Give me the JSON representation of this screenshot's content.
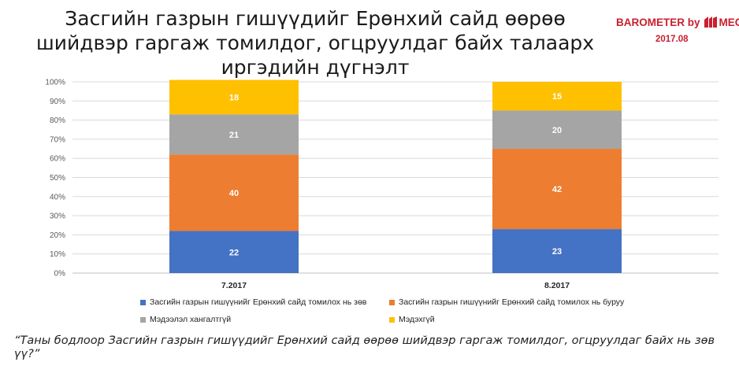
{
  "header": {
    "title": "Засгийн газрын гишүүдийг Ерөнхий сайд өөрөө шийдвэр гаргаж томилдог, огцруулдаг байх талаарх иргэдийн дүгнэлт",
    "brand": "BAROMETER by",
    "brand_suffix": "MEC",
    "period": "2017.08"
  },
  "question": "“Таны бодлоор Засгийн газрын гишүүдийг Ерөнхий сайд өөрөө шийдвэр гаргаж томилдог, огцруулдаг байх нь зөв үү?”",
  "chart_data": {
    "type": "bar",
    "stacked": true,
    "categories": [
      "7.2017",
      "8.2017"
    ],
    "ylim": [
      0,
      100
    ],
    "yticks": [
      "0%",
      "10%",
      "20%",
      "30%",
      "40%",
      "50%",
      "60%",
      "70%",
      "80%",
      "90%",
      "100%"
    ],
    "grid": true,
    "legend_position": "bottom",
    "series": [
      {
        "name": "Засгийн газрын гишүүнийг Ерөнхий сайд томилох нь зөв",
        "color": "#4472C4",
        "values": [
          22,
          23
        ]
      },
      {
        "name": "Засгийн газрын гишүүнийг Ерөнхий сайд томилох нь буруу",
        "color": "#ED7D31",
        "values": [
          40,
          42
        ]
      },
      {
        "name": "Мэдээлэл хангалтгүй",
        "color": "#A5A5A5",
        "values": [
          21,
          20
        ]
      },
      {
        "name": "Мэдэхгүй",
        "color": "#FFC000",
        "values": [
          18,
          15
        ]
      }
    ]
  }
}
